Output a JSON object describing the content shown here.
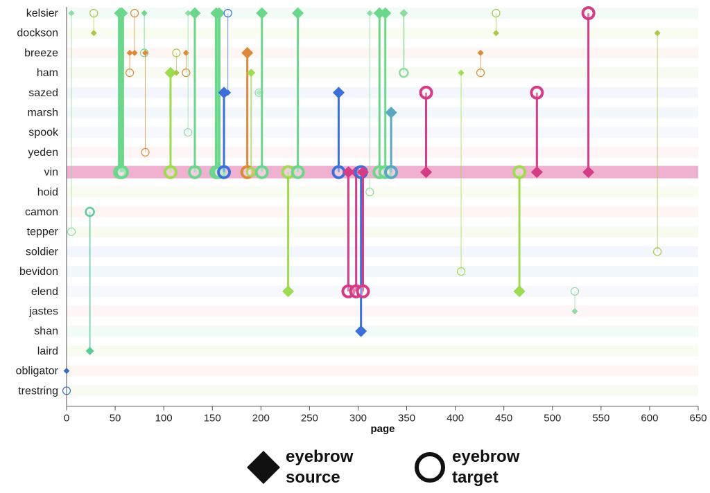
{
  "chart_data": {
    "type": "scatter",
    "title": "",
    "xlabel": "page",
    "ylabel": "",
    "xlim": [
      0,
      650
    ],
    "x_ticks": [
      0,
      50,
      100,
      150,
      200,
      250,
      300,
      350,
      400,
      450,
      500,
      550,
      600,
      650
    ],
    "grid": false,
    "legend_placement": "bottom",
    "characters": [
      "kelsier",
      "dockson",
      "breeze",
      "ham",
      "sazed",
      "marsh",
      "spook",
      "yeden",
      "vin",
      "hoid",
      "camon",
      "tepper",
      "soldier",
      "bevidon",
      "elend",
      "jastes",
      "shan",
      "laird",
      "obligator",
      "trestring"
    ],
    "highlighted_character": "vin",
    "legend": [
      {
        "shape": "diamond",
        "line1": "eyebrow",
        "line2": "source"
      },
      {
        "shape": "circle",
        "line1": "eyebrow",
        "line2": "target"
      }
    ],
    "colors": {
      "green": "#6cd68c",
      "lime": "#9edb52",
      "olive": "#a9c94a",
      "orange": "#db8a3a",
      "blue": "#3d6fd9",
      "teal": "#5aa7c2",
      "seafoam": "#5cc9a0",
      "magenta": "#d43c86",
      "highlight": "#f0b0cf"
    },
    "links": [
      {
        "page": 5,
        "source": "kelsier",
        "target": "tepper",
        "weight": 1,
        "color": "#8fdba3"
      },
      {
        "page": 28,
        "source": "dockson",
        "target": "kelsier",
        "weight": 1,
        "color": "#a9c94a"
      },
      {
        "page": 24,
        "source": "laird",
        "target": "camon",
        "weight": 2,
        "color": "#5cc9a0"
      },
      {
        "page": 0,
        "source": "obligator",
        "target": "trestring",
        "weight": 1,
        "color": "#3d6fd9"
      },
      {
        "page": 55,
        "source": "kelsier",
        "target": "vin",
        "weight": 6,
        "color": "#6cd68c"
      },
      {
        "page": 57,
        "source": "kelsier",
        "target": "vin",
        "weight": 6,
        "color": "#6cd68c"
      },
      {
        "page": 65,
        "source": "breeze",
        "target": "ham",
        "weight": 1,
        "color": "#db8a3a"
      },
      {
        "page": 70,
        "source": "breeze",
        "target": "kelsier",
        "weight": 1,
        "color": "#db8a3a"
      },
      {
        "page": 80,
        "source": "kelsier",
        "target": "breeze",
        "weight": 1,
        "color": "#6cd68c"
      },
      {
        "page": 81,
        "source": "breeze",
        "target": "yeden",
        "weight": 1,
        "color": "#db8a3a"
      },
      {
        "page": 107,
        "source": "ham",
        "target": "vin",
        "weight": 3,
        "color": "#9edb52"
      },
      {
        "page": 113,
        "source": "ham",
        "target": "breeze",
        "weight": 1,
        "color": "#a9c94a"
      },
      {
        "page": 123,
        "source": "breeze",
        "target": "ham",
        "weight": 1,
        "color": "#db8a3a"
      },
      {
        "page": 125,
        "source": "kelsier",
        "target": "spook",
        "weight": 1,
        "color": "#8fdba3"
      },
      {
        "page": 132,
        "source": "kelsier",
        "target": "vin",
        "weight": 3,
        "color": "#6cd68c"
      },
      {
        "page": 154,
        "source": "kelsier",
        "target": "vin",
        "weight": 4,
        "color": "#6cd68c"
      },
      {
        "page": 157,
        "source": "kelsier",
        "target": "vin",
        "weight": 4,
        "color": "#6cd68c"
      },
      {
        "page": 162,
        "source": "sazed",
        "target": "vin",
        "weight": 3,
        "color": "#3d6fd9"
      },
      {
        "page": 166,
        "source": "sazed",
        "target": "kelsier",
        "weight": 1,
        "color": "#3d6fd9"
      },
      {
        "page": 186,
        "source": "breeze",
        "target": "vin",
        "weight": 3,
        "color": "#db8a3a"
      },
      {
        "page": 190,
        "source": "ham",
        "target": "vin",
        "weight": 2,
        "color": "#9edb52"
      },
      {
        "page": 198,
        "source": "sazed",
        "target": "sazed",
        "weight": 1,
        "color": "#8fdba3"
      },
      {
        "page": 201,
        "source": "kelsier",
        "target": "vin",
        "weight": 3,
        "color": "#6cd68c"
      },
      {
        "page": 228,
        "source": "elend",
        "target": "vin",
        "weight": 3,
        "color": "#9edb52"
      },
      {
        "page": 238,
        "source": "kelsier",
        "target": "vin",
        "weight": 3,
        "color": "#6cd68c"
      },
      {
        "page": 280,
        "source": "sazed",
        "target": "vin",
        "weight": 3,
        "color": "#3d6fd9"
      },
      {
        "page": 290,
        "source": "vin",
        "target": "elend",
        "weight": 3,
        "color": "#d43c86"
      },
      {
        "page": 298,
        "source": "vin",
        "target": "elend",
        "weight": 3,
        "color": "#d43c86"
      },
      {
        "page": 303,
        "source": "shan",
        "target": "vin",
        "weight": 3,
        "color": "#3d6fd9"
      },
      {
        "page": 305,
        "source": "vin",
        "target": "elend",
        "weight": 3,
        "color": "#d43c86"
      },
      {
        "page": 312,
        "source": "kelsier",
        "target": "hoid",
        "weight": 1,
        "color": "#8fdba3"
      },
      {
        "page": 322,
        "source": "kelsier",
        "target": "vin",
        "weight": 3,
        "color": "#6cd68c"
      },
      {
        "page": 328,
        "source": "kelsier",
        "target": "vin",
        "weight": 3,
        "color": "#6cd68c"
      },
      {
        "page": 334,
        "source": "marsh",
        "target": "vin",
        "weight": 3,
        "color": "#5aa7c2"
      },
      {
        "page": 347,
        "source": "kelsier",
        "target": "ham",
        "weight": 2,
        "color": "#8fdba3"
      },
      {
        "page": 370,
        "source": "vin",
        "target": "sazed",
        "weight": 3,
        "color": "#d43c86"
      },
      {
        "page": 406,
        "source": "ham",
        "target": "bevidon",
        "weight": 1,
        "color": "#9edb52"
      },
      {
        "page": 426,
        "source": "breeze",
        "target": "ham",
        "weight": 1,
        "color": "#db8a3a"
      },
      {
        "page": 442,
        "source": "dockson",
        "target": "kelsier",
        "weight": 1,
        "color": "#a9c94a"
      },
      {
        "page": 466,
        "source": "elend",
        "target": "vin",
        "weight": 3,
        "color": "#9edb52"
      },
      {
        "page": 484,
        "source": "vin",
        "target": "sazed",
        "weight": 3,
        "color": "#d43c86"
      },
      {
        "page": 523,
        "source": "jastes",
        "target": "elend",
        "weight": 1,
        "color": "#8fdba3"
      },
      {
        "page": 537,
        "source": "vin",
        "target": "kelsier",
        "weight": 3,
        "color": "#d43c86"
      },
      {
        "page": 608,
        "source": "dockson",
        "target": "soldier",
        "weight": 1,
        "color": "#a9c94a"
      }
    ]
  }
}
